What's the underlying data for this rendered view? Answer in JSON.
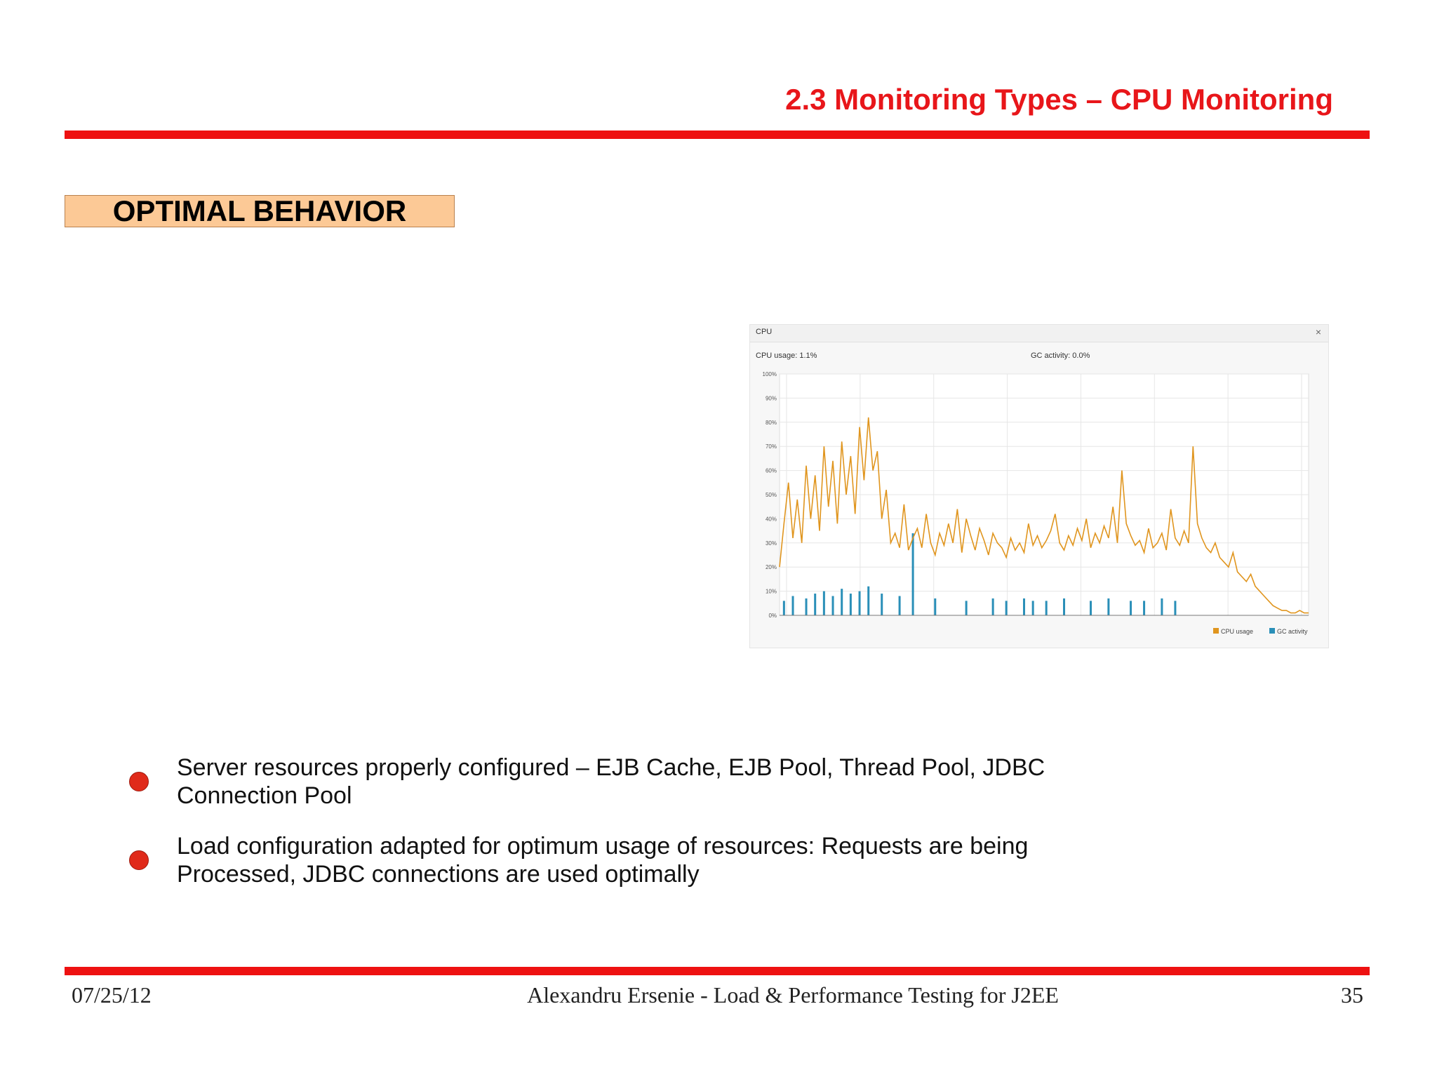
{
  "slide": {
    "title": "2.3 Monitoring Types – CPU Monitoring",
    "section_label": "OPTIMAL BEHAVIOR",
    "accent_color": "#ee1111",
    "label_fill": "#fcc996"
  },
  "chart_panel": {
    "window_title": "CPU",
    "cpu_readout": "CPU usage: 1.1%",
    "gc_readout": "GC activity: 0.0%",
    "close_icon": "close-icon"
  },
  "chart_data": {
    "type": "line",
    "title": "",
    "xlabel": "",
    "ylabel": "",
    "ylim": [
      0,
      100
    ],
    "y_ticks": [
      "100%",
      "90%",
      "80%",
      "70%",
      "60%",
      "50%",
      "40%",
      "30%",
      "20%",
      "10%",
      "0%"
    ],
    "x_ticks": [
      "",
      "",
      "",
      "",
      "",
      "",
      "",
      ""
    ],
    "series": [
      {
        "name": "CPU usage",
        "color": "#e0951e",
        "values": [
          20,
          38,
          55,
          32,
          48,
          30,
          62,
          40,
          58,
          35,
          70,
          45,
          64,
          38,
          72,
          50,
          66,
          42,
          78,
          56,
          82,
          60,
          68,
          40,
          52,
          30,
          34,
          28,
          46,
          27,
          32,
          36,
          28,
          42,
          30,
          25,
          34,
          29,
          38,
          30,
          44,
          26,
          40,
          33,
          27,
          36,
          31,
          25,
          34,
          30,
          28,
          24,
          32,
          27,
          30,
          26,
          38,
          29,
          33,
          28,
          31,
          35,
          42,
          30,
          27,
          33,
          29,
          36,
          31,
          40,
          28,
          34,
          30,
          37,
          32,
          45,
          30,
          60,
          38,
          33,
          29,
          31,
          26,
          36,
          28,
          30,
          34,
          27,
          44,
          32,
          29,
          35,
          30,
          70,
          38,
          32,
          28,
          26,
          30,
          24,
          22,
          20,
          26,
          18,
          16,
          14,
          17,
          12,
          10,
          8,
          6,
          4,
          3,
          2,
          2,
          1,
          1,
          2,
          1,
          1
        ],
        "legend": "CPU usage"
      },
      {
        "name": "GC activity",
        "color": "#2a8fb8",
        "values": [
          0,
          6,
          0,
          8,
          0,
          0,
          7,
          0,
          9,
          0,
          10,
          0,
          8,
          0,
          11,
          0,
          9,
          0,
          10,
          0,
          12,
          0,
          0,
          9,
          0,
          0,
          0,
          8,
          0,
          0,
          34,
          0,
          0,
          0,
          0,
          7,
          0,
          0,
          0,
          0,
          0,
          0,
          6,
          0,
          0,
          0,
          0,
          0,
          7,
          0,
          0,
          6,
          0,
          0,
          0,
          7,
          0,
          6,
          0,
          0,
          6,
          0,
          0,
          0,
          7,
          0,
          0,
          0,
          0,
          0,
          6,
          0,
          0,
          0,
          7,
          0,
          0,
          0,
          0,
          6,
          0,
          0,
          6,
          0,
          0,
          0,
          7,
          0,
          0,
          6,
          0,
          0,
          0,
          0,
          0,
          0,
          0,
          0,
          0,
          0,
          0,
          0,
          0,
          0,
          0,
          0,
          0,
          0,
          0,
          0,
          0,
          0,
          0,
          0,
          0,
          0,
          0,
          0,
          0,
          0
        ]
      }
    ],
    "legend": [
      "CPU usage",
      "GC activity"
    ],
    "grid": true,
    "legend_position": "bottom-right"
  },
  "bullets": [
    "Server resources properly configured – EJB Cache, EJB Pool, Thread Pool, JDBC Connection Pool",
    "Load configuration adapted for optimum usage of resources: Requests are being Processed, JDBC connections are used optimally"
  ],
  "footer": {
    "date": "07/25/12",
    "author": "Alexandru Ersenie - Load & Performance Testing for J2EE",
    "page": "35"
  }
}
